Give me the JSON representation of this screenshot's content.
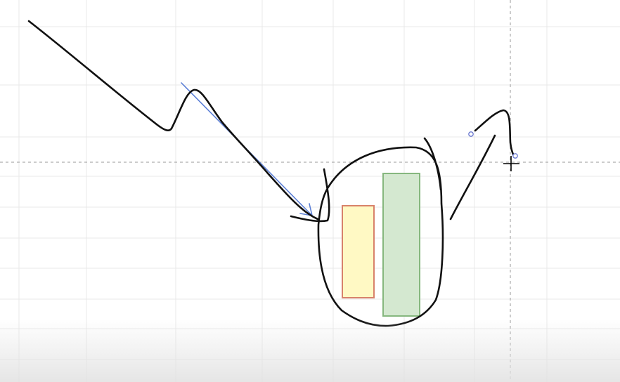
{
  "canvas": {
    "background": "#ffffff",
    "grid_color": "#e9e9e9",
    "grid_enabled": true,
    "crosshair_color": "#9a9a9a"
  },
  "ink": {
    "stroke_color": "#111111"
  },
  "arrow": {
    "color": "#5b7fd6"
  },
  "rect_yellow": {
    "fill": "#fff9c4",
    "stroke": "#d8826a"
  },
  "rect_green": {
    "fill": "#d4e8d0",
    "stroke": "#86b77e"
  },
  "handles": {
    "color": "#6a78d0"
  },
  "cursor": {
    "icon": "crosshair-cursor-icon"
  }
}
